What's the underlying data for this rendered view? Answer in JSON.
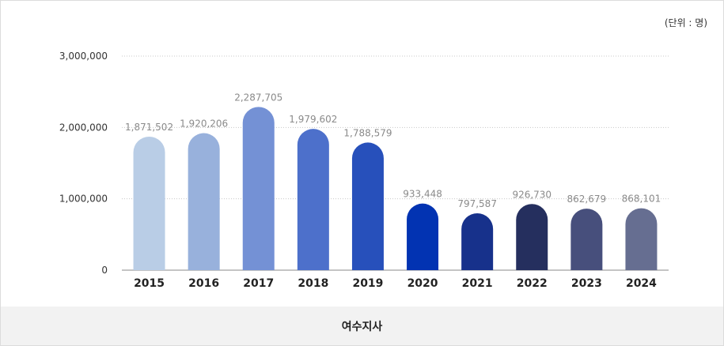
{
  "unit_label": "(단위 : 명)",
  "footer_label": "여수지사",
  "chart_data": {
    "type": "bar",
    "title": "",
    "xlabel": "",
    "ylabel": "",
    "ylim": [
      0,
      3000000
    ],
    "yticks": [
      0,
      1000000,
      2000000,
      3000000
    ],
    "ytick_labels": [
      "0",
      "1,000,000",
      "2,000,000",
      "3,000,000"
    ],
    "grid": true,
    "categories": [
      "2015",
      "2016",
      "2017",
      "2018",
      "2019",
      "2020",
      "2021",
      "2022",
      "2023",
      "2024"
    ],
    "values": [
      1871502,
      1920206,
      2287705,
      1979602,
      1788579,
      933448,
      797587,
      926730,
      862679,
      868101
    ],
    "value_labels": [
      "1,871,502",
      "1,920,206",
      "2,287,705",
      "1,979,602",
      "1,788,579",
      "933,448",
      "797,587",
      "926,730",
      "862,679",
      "868,101"
    ],
    "colors": [
      "#b9cde6",
      "#98b1dc",
      "#7491d5",
      "#4d70cb",
      "#2750bb",
      "#0233b2",
      "#17318b",
      "#252f5e",
      "#474f7c",
      "#666e91"
    ]
  }
}
